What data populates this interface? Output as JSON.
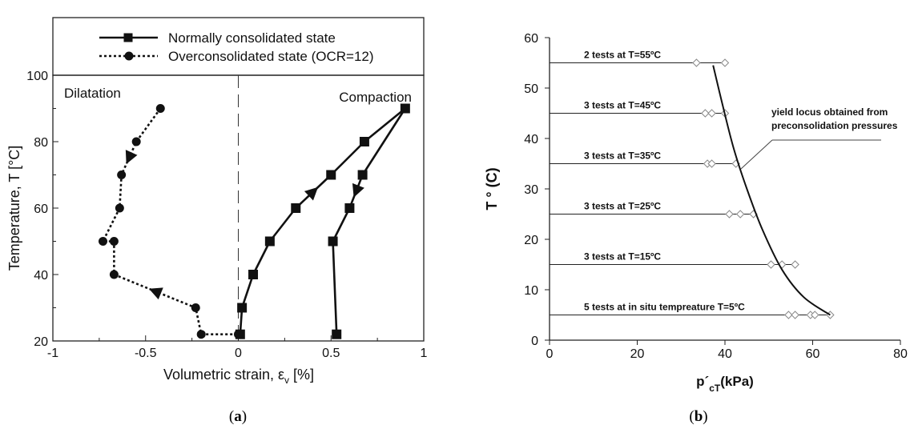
{
  "chart_data": [
    {
      "panel": "a",
      "caption": "(a)",
      "type": "line",
      "xlabel_main": "Volumetric strain, ε",
      "xlabel_sub": "v",
      "xlabel_unit": " [%]",
      "ylabel": "Temperature, T [°C]",
      "xlim": [
        -1,
        1
      ],
      "ylim": [
        20,
        100
      ],
      "x_ticks": [
        "-1",
        "-0.5",
        "0",
        "0.5",
        "1"
      ],
      "y_ticks": [
        "20",
        "40",
        "60",
        "80",
        "100"
      ],
      "annotations": [
        "Dilatation",
        "Compaction"
      ],
      "legend_position": "top",
      "grid": false,
      "series": [
        {
          "name": "Normally consolidated state",
          "style": "solid",
          "marker": "square",
          "x": [
            0.01,
            0.02,
            0.08,
            0.17,
            0.31,
            0.5,
            0.68,
            0.9,
            0.67,
            0.6,
            0.51,
            0.53
          ],
          "y": [
            22,
            30,
            40,
            50,
            60,
            70,
            80,
            90,
            70,
            60,
            50,
            22
          ]
        },
        {
          "name": "Overconsolidated state (OCR=12)",
          "style": "dotted",
          "marker": "circle",
          "x": [
            -0.42,
            -0.55,
            -0.63,
            -0.64,
            -0.73,
            -0.67,
            -0.67,
            -0.23,
            -0.2,
            0.0
          ],
          "y": [
            90,
            80,
            70,
            60,
            50,
            50,
            40,
            30,
            22,
            22
          ]
        }
      ]
    },
    {
      "panel": "b",
      "caption": "(b)",
      "type": "scatter",
      "xlabel_main": "p´",
      "xlabel_sub": "cT",
      "xlabel_unit": "(kPa)",
      "ylabel": "T ° (C)",
      "xlim": [
        0,
        80
      ],
      "ylim": [
        0,
        60
      ],
      "x_ticks": [
        "0",
        "20",
        "40",
        "60",
        "80"
      ],
      "y_ticks": [
        "0",
        "10",
        "20",
        "30",
        "40",
        "50",
        "60"
      ],
      "grid": false,
      "test_lines": [
        {
          "label": "2 tests at T=55ºC",
          "T": 55,
          "points": [
            33.5,
            40
          ]
        },
        {
          "label": "3 tests at T=45ºC",
          "T": 45,
          "points": [
            35.5,
            37,
            40
          ]
        },
        {
          "label": "3 tests at T=35ºC",
          "T": 35,
          "points": [
            36,
            37,
            42.5
          ]
        },
        {
          "label": "3 tests at T=25ºC",
          "T": 25,
          "points": [
            41,
            43.5,
            46.5
          ]
        },
        {
          "label": "3 tests at T=15ºC",
          "T": 15,
          "points": [
            50.5,
            53,
            56
          ]
        },
        {
          "label": "5 tests at in situ tempreature T=5ºC",
          "T": 5,
          "points": [
            54.5,
            56,
            59.5,
            60.5,
            64
          ]
        }
      ],
      "yield_locus": {
        "x": [
          64,
          58,
          53,
          48.5,
          45,
          42,
          39.5,
          37.3
        ],
        "y": [
          5,
          8.5,
          14,
          22,
          30,
          38,
          46.5,
          54.5
        ]
      },
      "annotation": {
        "lines": [
          "yield locus obtained from",
          "preconsolidation pressures"
        ]
      }
    }
  ]
}
